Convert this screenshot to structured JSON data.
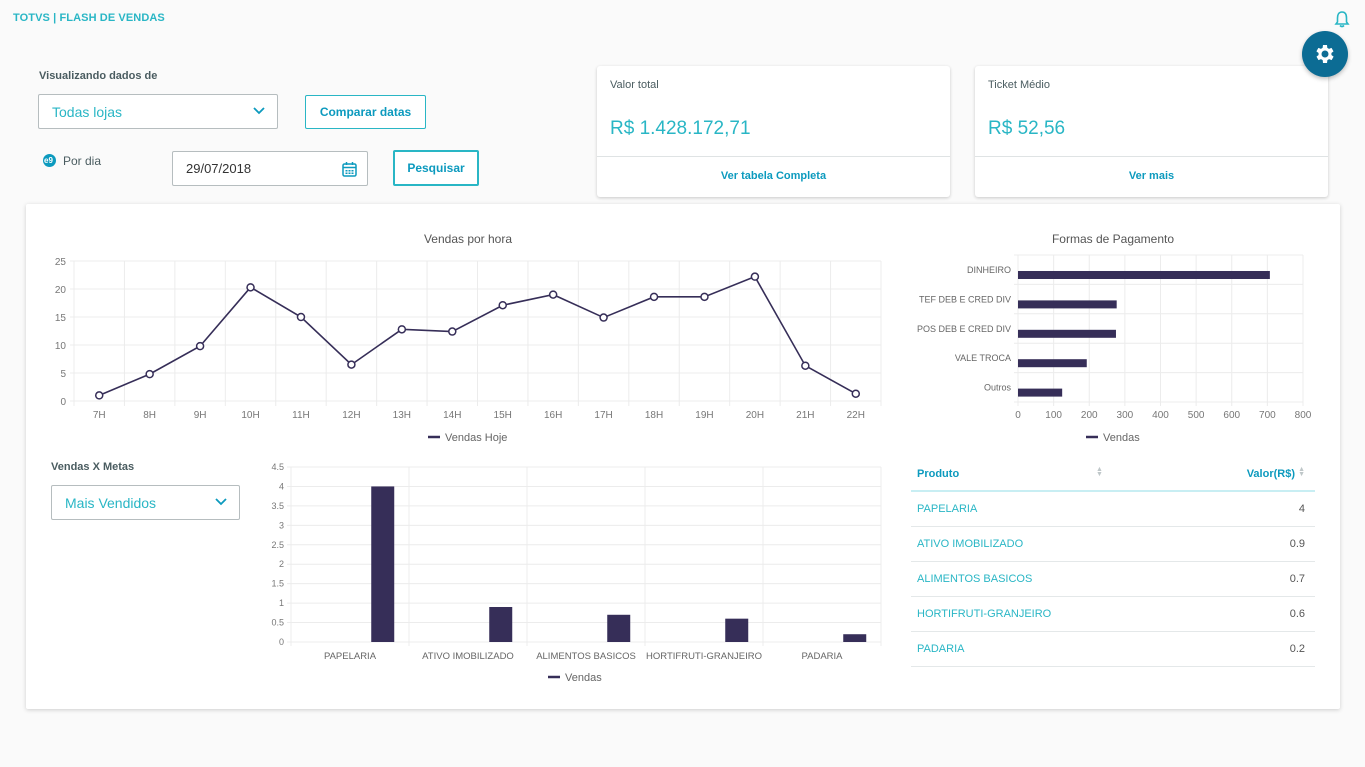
{
  "header": {
    "app_title": "TOTVS | FLASH DE VENDAS",
    "notification_icon": "bell-icon",
    "settings_icon": "gear-icon"
  },
  "filters": {
    "store_label": "Visualizando dados de",
    "store_selected": "Todas lojas",
    "compare_button": "Comparar datas",
    "period_icon": "calendar-day-icon",
    "period_label": "Por dia",
    "date_value": "29/07/2018",
    "search_button": "Pesquisar"
  },
  "kpis": [
    {
      "title": "Valor total",
      "value": "R$ 1.428.172,71",
      "link": "Ver tabela Completa"
    },
    {
      "title": "Ticket Médio",
      "value": "R$ 52,56",
      "link": "Ver mais"
    }
  ],
  "goals": {
    "label": "Vendas X Metas",
    "selected": "Mais Vendidos"
  },
  "table": {
    "columns": [
      "Produto",
      "Valor(R$)"
    ],
    "rows": [
      {
        "produto": "PAPELARIA",
        "valor": "4"
      },
      {
        "produto": "ATIVO IMOBILIZADO",
        "valor": "0.9"
      },
      {
        "produto": "ALIMENTOS BASICOS",
        "valor": "0.7"
      },
      {
        "produto": "HORTIFRUTI-GRANJEIRO",
        "valor": "0.6"
      },
      {
        "produto": "PADARIA",
        "valor": "0.2"
      }
    ]
  },
  "colors": {
    "accent": "#29b6c5",
    "accent_dark": "#0c6c94",
    "series": "#362e58"
  },
  "chart_data": [
    {
      "type": "line",
      "title": "Vendas por hora",
      "x": [
        "7H",
        "8H",
        "9H",
        "10H",
        "11H",
        "12H",
        "13H",
        "14H",
        "15H",
        "16H",
        "17H",
        "18H",
        "19H",
        "20H",
        "21H",
        "22H"
      ],
      "series": [
        {
          "name": "Vendas Hoje",
          "values": [
            1,
            4.8,
            9.8,
            20.3,
            15,
            6.5,
            12.8,
            12.4,
            17.1,
            19,
            14.9,
            18.6,
            18.6,
            22.2,
            6.3,
            1.3
          ]
        }
      ],
      "yticks": [
        "0",
        "5",
        "10",
        "15",
        "20",
        "25"
      ],
      "ylim": [
        0,
        25
      ],
      "grid": true,
      "legend": "bottom"
    },
    {
      "type": "bar",
      "orientation": "horizontal",
      "title": "Formas de Pagamento",
      "categories": [
        "DINHEIRO",
        "TEF DEB E CRED DIV",
        "POS DEB E CRED DIV",
        "VALE TROCA",
        "Outros"
      ],
      "series": [
        {
          "name": "Vendas",
          "values": [
            707,
            277,
            275,
            193,
            124
          ]
        }
      ],
      "xticks": [
        "0",
        "100",
        "200",
        "300",
        "400",
        "500",
        "600",
        "700",
        "800"
      ],
      "xlim": [
        0,
        800
      ],
      "grid": true,
      "legend": "bottom"
    },
    {
      "type": "bar",
      "title": "",
      "categories": [
        "PAPELARIA",
        "ATIVO IMOBILIZADO",
        "ALIMENTOS BASICOS",
        "HORTIFRUTI-GRANJEIRO",
        "PADARIA"
      ],
      "series": [
        {
          "name": "Vendas",
          "values": [
            4,
            0.9,
            0.7,
            0.6,
            0.2
          ]
        }
      ],
      "yticks": [
        "0",
        "0.5",
        "1",
        "1.5",
        "2",
        "2.5",
        "3",
        "3.5",
        "4",
        "4.5"
      ],
      "ylim": [
        0,
        4.5
      ],
      "grid": true,
      "legend": "bottom"
    }
  ]
}
